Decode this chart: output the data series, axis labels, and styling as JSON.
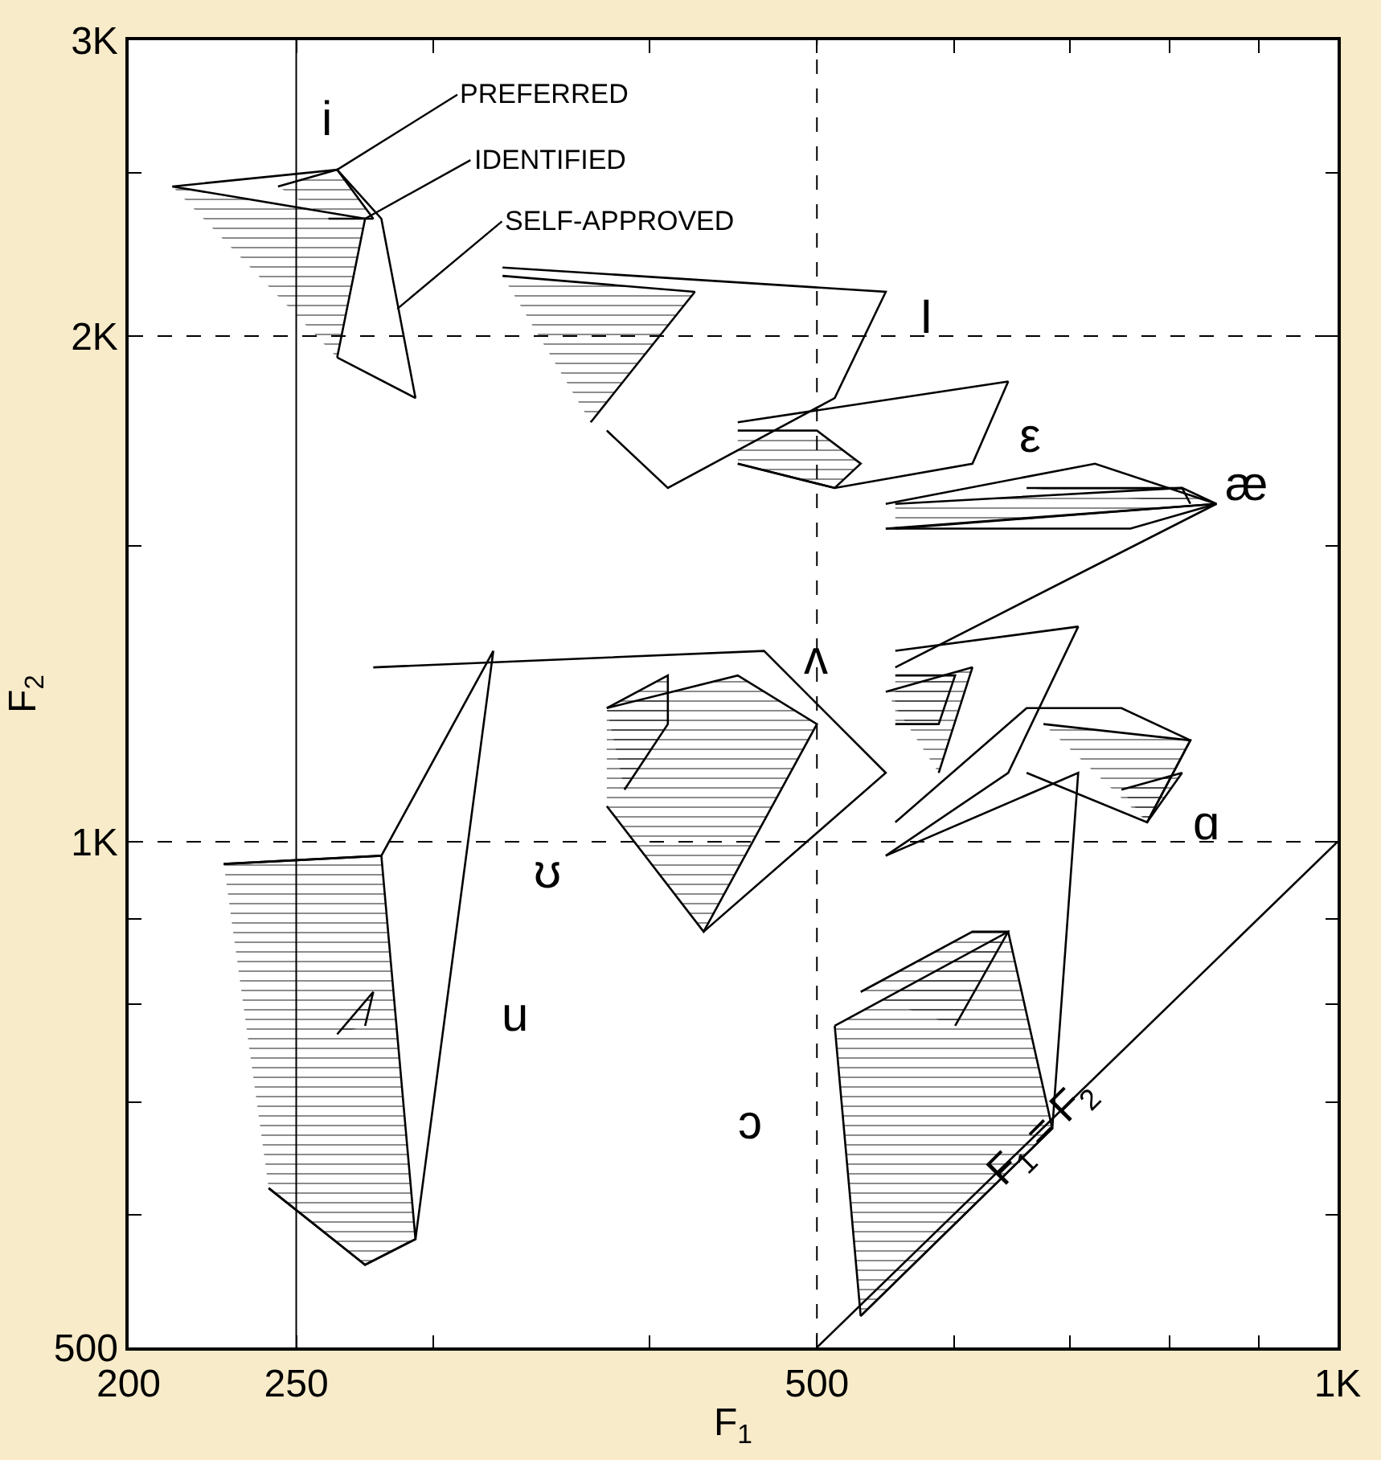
{
  "chart_data": {
    "type": "line",
    "xlabel": "F$_{1}$",
    "ylabel": "F$_{2}$",
    "log": "xy",
    "xlim": [
      200,
      1000
    ],
    "ylim": [
      500,
      3000
    ],
    "xticks": [
      200,
      250,
      {
        "value": 300,
        "label": null
      },
      {
        "value": 400,
        "label": null
      },
      500,
      {
        "value": 600,
        "label": null
      },
      {
        "value": 700,
        "label": null
      },
      {
        "value": 800,
        "label": null
      },
      {
        "value": 900,
        "label": null
      },
      {
        "value": 1000,
        "label": "1K"
      }
    ],
    "yticks": [
      500,
      {
        "value": 600,
        "label": null
      },
      {
        "value": 700,
        "label": null
      },
      {
        "value": 800,
        "label": null
      },
      {
        "value": 900,
        "label": null
      },
      {
        "value": 1000,
        "label": "1K"
      },
      {
        "value": 1500,
        "label": null
      },
      {
        "value": 2000,
        "label": "2K"
      },
      {
        "value": 2500,
        "label": null
      },
      {
        "value": 3000,
        "label": "3K"
      }
    ],
    "ref_lines": [
      {
        "axis": "x",
        "value": 250,
        "line_style": "solid"
      },
      {
        "axis": "x",
        "value": 500,
        "line_style": "dashed"
      },
      {
        "axis": "y",
        "value": 1000,
        "line_style": "dashed"
      },
      {
        "axis": "y",
        "value": 2000,
        "line_style": "dashed"
      }
    ],
    "series": [
      {
        "color": "#000000",
        "x": [
          500,
          1000
        ],
        "values": [
          500,
          1000
        ]
      },
      {
        "color": "#000000",
        "x": [
          212,
          264,
          280,
          293,
          264
        ],
        "values": [
          2455,
          2512,
          2349,
          1837,
          1942
        ]
      },
      {
        "type": "area",
        "color": "#000000",
        "x": [
          212,
          274,
          264
        ],
        "values": [
          2455,
          2349,
          1942
        ]
      },
      {
        "type": "area",
        "color": "#000000",
        "x": [
          244,
          264,
          277,
          261
        ],
        "values": [
          2455,
          2512,
          2349,
          2349
        ]
      },
      {
        "color": "#000000",
        "x": [
          329,
          548,
          512,
          410,
          378
        ],
        "values": [
          2197,
          2125,
          1837,
          1624,
          1757
        ]
      },
      {
        "type": "area",
        "color": "#000000",
        "x": [
          329,
          425,
          370
        ],
        "values": [
          2172,
          2125,
          1777
        ]
      },
      {
        "color": "#000000",
        "x": [
          450,
          645,
          615,
          512,
          450
        ],
        "values": [
          1777,
          1879,
          1679,
          1624,
          1679
        ]
      },
      {
        "type": "area",
        "color": "#000000",
        "x": [
          450,
          500,
          530,
          512,
          450
        ],
        "values": [
          1757,
          1757,
          1679,
          1624,
          1679
        ]
      },
      {
        "color": "#000000",
        "x": [
          548,
          724,
          851,
          759,
          548
        ],
        "values": [
          1589,
          1679,
          1589,
          1536,
          1536
        ]
      },
      {
        "type": "area",
        "color": "#000000",
        "x": [
          555,
          813,
          851,
          555
        ],
        "values": [
          1589,
          1624,
          1589,
          1536
        ]
      },
      {
        "type": "area",
        "color": "#000000",
        "x": [
          661,
          813,
          822
        ],
        "values": [
          1624,
          1624,
          1589
        ]
      },
      {
        "color": "#000000",
        "x": [
          548,
          851,
          555
        ],
        "values": [
          1536,
          1589,
          1270
        ]
      },
      {
        "color": "#000000",
        "x": [
          555,
          708,
          645,
          548
        ],
        "values": [
          1299,
          1343,
          1099,
          981
        ]
      },
      {
        "type": "area",
        "color": "#000000",
        "x": [
          548,
          615,
          588
        ],
        "values": [
          1228,
          1270,
          1099
        ]
      },
      {
        "type": "area",
        "color": "#000000",
        "x": [
          555,
          601,
          588,
          555
        ],
        "values": [
          1256,
          1256,
          1175,
          1175
        ]
      },
      {
        "color": "#000000",
        "x": [
          555,
          661,
          750,
          822,
          776,
          661
        ],
        "values": [
          1027,
          1201,
          1201,
          1149,
          1027,
          1099
        ]
      },
      {
        "type": "area",
        "color": "#000000",
        "x": [
          676,
          822,
          776
        ],
        "values": [
          1175,
          1149,
          1027
        ]
      },
      {
        "type": "area",
        "color": "#000000",
        "x": [
          750,
          813,
          776
        ],
        "values": [
          1074,
          1099,
          1027
        ]
      },
      {
        "color": "#000000",
        "x": [
          277,
          466,
          548,
          430
        ],
        "values": [
          1270,
          1299,
          1099,
          884
        ]
      },
      {
        "type": "area",
        "color": "#000000",
        "x": [
          378,
          450,
          500,
          430,
          378
        ],
        "values": [
          1201,
          1256,
          1175,
          884,
          1050
        ]
      },
      {
        "type": "area",
        "color": "#000000",
        "x": [
          378,
          410,
          410,
          387
        ],
        "values": [
          1201,
          1256,
          1175,
          1074
        ]
      },
      {
        "color": "#000000",
        "x": [
          227,
          280,
          325,
          293,
          274,
          241
        ],
        "values": [
          970,
          981,
          1299,
          580,
          560,
          622
        ]
      },
      {
        "type": "area",
        "color": "#000000",
        "x": [
          227,
          280,
          293,
          274,
          241
        ],
        "values": [
          970,
          981,
          580,
          560,
          622
        ]
      },
      {
        "type": "area",
        "color": "#000000",
        "x": [
          264,
          277,
          274
        ],
        "values": [
          768,
          814,
          777
        ]
      },
      {
        "color": "#000000",
        "x": [
          548,
          708,
          684,
          530,
          512
        ],
        "values": [
          981,
          1099,
          675,
          522,
          777
        ]
      },
      {
        "type": "area",
        "color": "#000000",
        "x": [
          512,
          645,
          684,
          530
        ],
        "values": [
          777,
          884,
          675,
          522
        ]
      },
      {
        "type": "area",
        "color": "#000000",
        "x": [
          530,
          615,
          645,
          601
        ],
        "values": [
          814,
          884,
          884,
          777
        ]
      }
    ],
    "annotations": [
      {
        "text": "PREFERRED",
        "x": 264,
        "y": 2512
      },
      {
        "text": "IDENTIFIED",
        "x": 274,
        "y": 2349
      },
      {
        "text": "SELF-APPROVED",
        "x": 286,
        "y": 2076
      },
      "i",
      "I",
      "ε",
      "æ",
      "ʌ",
      "ɑ",
      "ʊ",
      "u",
      "ɔ",
      "F$_{1}$ = F$_{2}$"
    ]
  }
}
